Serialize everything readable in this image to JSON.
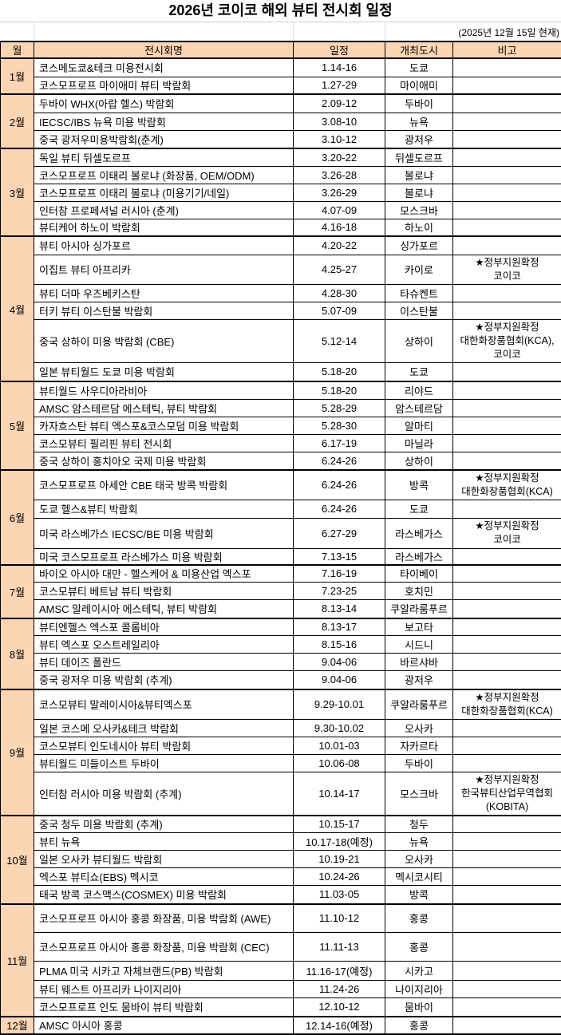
{
  "title": "2026년 코이코 해외 뷰티 전시회 일정",
  "as_of": "(2025년 12월 15일 현재)",
  "header": {
    "month": "월",
    "name": "전시회명",
    "date": "일정",
    "city": "개최도시",
    "note": "비고"
  },
  "colors": {
    "header_bg": "#FCD5B4",
    "month_bg": "#FCD5B4"
  },
  "months": [
    {
      "label": "1월",
      "events": [
        {
          "name": "코스메도쿄&테크 미용전시회",
          "date": "1.14-16",
          "city": "도쿄",
          "note": []
        },
        {
          "name": "코스모프로프 마이애미 뷰티 박람회",
          "date": "1.27-29",
          "city": "마이애미",
          "note": []
        }
      ]
    },
    {
      "label": "2월",
      "events": [
        {
          "name": "두바이 WHX(아랍 헬스) 박람회",
          "date": "2.09-12",
          "city": "두바이",
          "note": []
        },
        {
          "name": "IECSC/IBS 뉴욕 미용 박람회",
          "date": "3.08-10",
          "city": "뉴욕",
          "note": []
        },
        {
          "name": "중국 광저우미용박람회(춘계)",
          "date": "3.10-12",
          "city": "광저우",
          "note": []
        }
      ]
    },
    {
      "label": "3월",
      "events": [
        {
          "name": "독일 뷰티 뒤셀도르프",
          "date": "3.20-22",
          "city": "뒤셀도르프",
          "note": []
        },
        {
          "name": "코스모프로프 이태리 볼로냐 (화장품, OEM/ODM)",
          "date": "3.26-28",
          "city": "볼로냐",
          "note": []
        },
        {
          "name": "코스모프로프 이태리 볼로냐 (미용기기/네일)",
          "date": "3.26-29",
          "city": "볼로냐",
          "note": []
        },
        {
          "name": "인터참 프로페셔널 러시아 (춘계)",
          "date": "4.07-09",
          "city": "모스크바",
          "note": []
        },
        {
          "name": "뷰티케어 하노이 박람회",
          "date": "4.16-18",
          "city": "하노이",
          "note": []
        }
      ]
    },
    {
      "label": "4월",
      "events": [
        {
          "name": "뷰티 아시아 싱가포르",
          "date": "4.20-22",
          "city": "싱가포르",
          "note": []
        },
        {
          "name": "이집트 뷰티 아프리카",
          "date": "4.25-27",
          "city": "카이로",
          "note": [
            "★정부지원확정",
            "코이코"
          ]
        },
        {
          "name": "뷰티 더마 우즈베키스탄",
          "date": "4.28-30",
          "city": "타슈켄트",
          "note": []
        },
        {
          "name": "터키 뷰티 이스탄불 박람회",
          "date": "5.07-09",
          "city": "이스탄불",
          "note": []
        },
        {
          "name": "중국 상하이 미용 박람회 (CBE)",
          "date": "5.12-14",
          "city": "상하이",
          "note": [
            "★정부지원확정",
            "대한화장품협회(KCA),",
            "코이코"
          ]
        },
        {
          "name": "일본 뷰티월드 도쿄 미용 박람회",
          "date": "5.18-20",
          "city": "도쿄",
          "note": []
        }
      ]
    },
    {
      "label": "5월",
      "events": [
        {
          "name": "뷰티월드 사우디아라비아",
          "date": "5.18-20",
          "city": "리야드",
          "note": []
        },
        {
          "name": "AMSC 암스테르담 에스테틱, 뷰티 박람회",
          "date": "5.28-29",
          "city": "암스테르담",
          "note": []
        },
        {
          "name": "카자흐스탄 뷰티 엑스포&코스모덤 미용 박람회",
          "date": "5.28-30",
          "city": "알마티",
          "note": []
        },
        {
          "name": "코스모뷰티 필리핀 뷰티 전시회",
          "date": "6.17-19",
          "city": "마닐라",
          "note": []
        },
        {
          "name": "중국 상하이 홍치아오 국제 미용 박람회",
          "date": "6.24-26",
          "city": "상하이",
          "note": []
        }
      ]
    },
    {
      "label": "6월",
      "events": [
        {
          "name": "코스모프로프 아세안 CBE 태국 방콕 박람회",
          "date": "6.24-26",
          "city": "방콕",
          "note": [
            "★정부지원확정",
            "대한화장품협회(KCA)"
          ]
        },
        {
          "name": "도쿄 헬스&뷰티 박람회",
          "date": "6.24-26",
          "city": "도쿄",
          "note": []
        },
        {
          "name": "미국 라스베가스 IECSC/BE 미용 박람회",
          "date": "6.27-29",
          "city": "라스베가스",
          "note": [
            "★정부지원확정",
            "코이코"
          ]
        },
        {
          "name": "미국 코스모프로프 라스베가스 미용 박람회",
          "date": "7.13-15",
          "city": "라스베가스",
          "note": []
        }
      ]
    },
    {
      "label": "7월",
      "events": [
        {
          "name": "바이오 아시아 대만 - 헬스케어 & 미용산업 엑스포",
          "date": "7.16-19",
          "city": "타이베이",
          "note": []
        },
        {
          "name": "코스모뷰티 베트남 뷰티 박람회",
          "date": "7.23-25",
          "city": "호치민",
          "note": []
        },
        {
          "name": "AMSC 말레이시아 에스테틱, 뷰티 박람회",
          "date": "8.13-14",
          "city": "쿠알라룸푸르",
          "note": []
        }
      ]
    },
    {
      "label": "8월",
      "events": [
        {
          "name": "뷰티엔헬스 엑스포 콜롬비아",
          "date": "8.13-17",
          "city": "보고타",
          "note": []
        },
        {
          "name": "뷰티 엑스포 오스트레일리아",
          "date": "8.15-16",
          "city": "시드니",
          "note": []
        },
        {
          "name": "뷰티 데이즈 폴란드",
          "date": "9.04-06",
          "city": "바르샤바",
          "note": []
        },
        {
          "name": "중국 광저우 미용 박람회 (추계)",
          "date": "9.04-06",
          "city": "광저우",
          "note": []
        }
      ]
    },
    {
      "label": "9월",
      "events": [
        {
          "name": "코스모뷰티 말레이시아&뷰티엑스포",
          "date": "9.29-10.01",
          "city": "쿠알라룸푸르",
          "note": [
            "★정부지원확정",
            "대한화장품협회(KCA)"
          ]
        },
        {
          "name": "일본 코스메 오사카&테크 박람회",
          "date": "9.30-10.02",
          "city": "오사카",
          "note": []
        },
        {
          "name": "코스모뷰티 인도네시아 뷰티 박람회",
          "date": "10.01-03",
          "city": "자카르타",
          "note": []
        },
        {
          "name": "뷰티월드 미들이스트 두바이",
          "date": "10.06-08",
          "city": "두바이",
          "note": []
        },
        {
          "name": "인터참 러시아 미용 박람회 (추계)",
          "date": "10.14-17",
          "city": "모스크바",
          "note": [
            "★정부지원확정",
            "한국뷰티산업무역협회",
            "(KOBITA)"
          ]
        }
      ]
    },
    {
      "label": "10월",
      "events": [
        {
          "name": "중국 청두 미용 박람회 (추계)",
          "date": "10.15-17",
          "city": "청두",
          "note": []
        },
        {
          "name": "뷰티 뉴욕",
          "date": "10.17-18(예정)",
          "city": "뉴욕",
          "note": []
        },
        {
          "name": "일본 오사카 뷰티월드 박람회",
          "date": "10.19-21",
          "city": "오사카",
          "note": []
        },
        {
          "name": "엑스포 뷰티쇼(EBS) 멕시코",
          "date": "10.24-26",
          "city": "멕시코시티",
          "note": []
        },
        {
          "name": "태국 방콕 코스맥스(COSMEX) 미용 박람회",
          "date": "11.03-05",
          "city": "방콕",
          "note": []
        }
      ]
    },
    {
      "label": "11월",
      "events": [
        {
          "name": "코스모프로프 아시아 홍콩 화장품, 미용 박람회 (AWE)",
          "date": "11.10-12",
          "city": "홍콩",
          "note": []
        },
        {
          "name": "코스모프로프 아시아 홍콩 화장품, 미용 박람회 (CEC)",
          "date": "11.11-13",
          "city": "홍콩",
          "note": []
        },
        {
          "name": "PLMA 미국 시카고 자체브랜드(PB) 박람회",
          "date": "11.16-17(예정)",
          "city": "시카고",
          "note": []
        },
        {
          "name": "뷰티 웨스트 아프리카 나이지리아",
          "date": "11.24-26",
          "city": "나이지리아",
          "note": []
        },
        {
          "name": "코스모프로프 인도 뭄바이 뷰티 박람회",
          "date": "12.10-12",
          "city": "뭄바이",
          "note": []
        }
      ]
    },
    {
      "label": "12월",
      "events": [
        {
          "name": "AMSC 아시아 홍콩",
          "date": "12.14-16(예정)",
          "city": "홍콩",
          "note": []
        }
      ]
    }
  ]
}
